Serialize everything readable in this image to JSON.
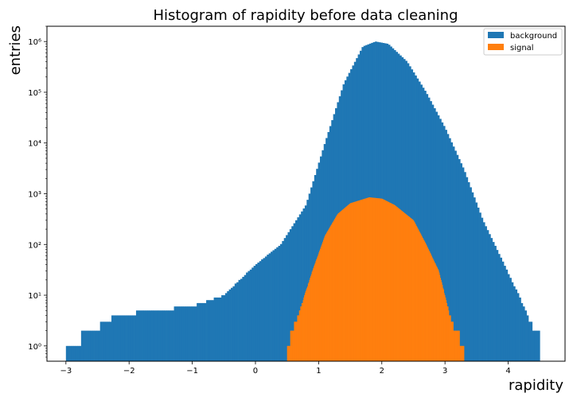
{
  "chart_data": {
    "type": "histogram",
    "title": "Histogram of rapidity before data cleaning",
    "xlabel": "rapidity",
    "ylabel": "entries",
    "xlim": [
      -3.3,
      4.9
    ],
    "ylim": [
      0.5,
      2000000
    ],
    "yscale": "log",
    "grid": false,
    "legend_position": "top-right",
    "x_ticks": [
      -3,
      -2,
      -1,
      0,
      1,
      2,
      3,
      4
    ],
    "y_ticks": [
      {
        "value": 1,
        "label": "10⁰"
      },
      {
        "value": 10,
        "label": "10¹"
      },
      {
        "value": 100,
        "label": "10²"
      },
      {
        "value": 1000,
        "label": "10³"
      },
      {
        "value": 10000,
        "label": "10⁴"
      },
      {
        "value": 100000,
        "label": "10⁵"
      },
      {
        "value": 1000000,
        "label": "10⁶"
      }
    ],
    "series": [
      {
        "name": "background",
        "color": "#1f77b4",
        "bin_range": [
          -3.0,
          4.5
        ],
        "bin_width": 0.03,
        "profile": [
          {
            "x": -3.0,
            "y": 1
          },
          {
            "x": -2.6,
            "y": 2
          },
          {
            "x": -2.2,
            "y": 4
          },
          {
            "x": -1.6,
            "y": 5
          },
          {
            "x": -1.0,
            "y": 6
          },
          {
            "x": -0.5,
            "y": 10
          },
          {
            "x": 0.0,
            "y": 40
          },
          {
            "x": 0.4,
            "y": 100
          },
          {
            "x": 0.8,
            "y": 600
          },
          {
            "x": 1.1,
            "y": 10000
          },
          {
            "x": 1.4,
            "y": 150000
          },
          {
            "x": 1.7,
            "y": 800000
          },
          {
            "x": 1.9,
            "y": 1000000
          },
          {
            "x": 2.1,
            "y": 900000
          },
          {
            "x": 2.4,
            "y": 400000
          },
          {
            "x": 2.7,
            "y": 100000
          },
          {
            "x": 3.0,
            "y": 20000
          },
          {
            "x": 3.3,
            "y": 3000
          },
          {
            "x": 3.6,
            "y": 300
          },
          {
            "x": 3.9,
            "y": 50
          },
          {
            "x": 4.2,
            "y": 8
          },
          {
            "x": 4.4,
            "y": 2
          }
        ]
      },
      {
        "name": "signal",
        "color": "#ff7f0e",
        "bin_range": [
          0.5,
          3.3
        ],
        "bin_width": 0.01,
        "profile": [
          {
            "x": 0.5,
            "y": 1
          },
          {
            "x": 0.7,
            "y": 5
          },
          {
            "x": 0.9,
            "y": 30
          },
          {
            "x": 1.1,
            "y": 150
          },
          {
            "x": 1.3,
            "y": 400
          },
          {
            "x": 1.5,
            "y": 650
          },
          {
            "x": 1.8,
            "y": 850
          },
          {
            "x": 2.0,
            "y": 800
          },
          {
            "x": 2.2,
            "y": 600
          },
          {
            "x": 2.5,
            "y": 300
          },
          {
            "x": 2.7,
            "y": 100
          },
          {
            "x": 2.9,
            "y": 30
          },
          {
            "x": 3.1,
            "y": 3
          },
          {
            "x": 3.3,
            "y": 1
          }
        ]
      }
    ]
  }
}
